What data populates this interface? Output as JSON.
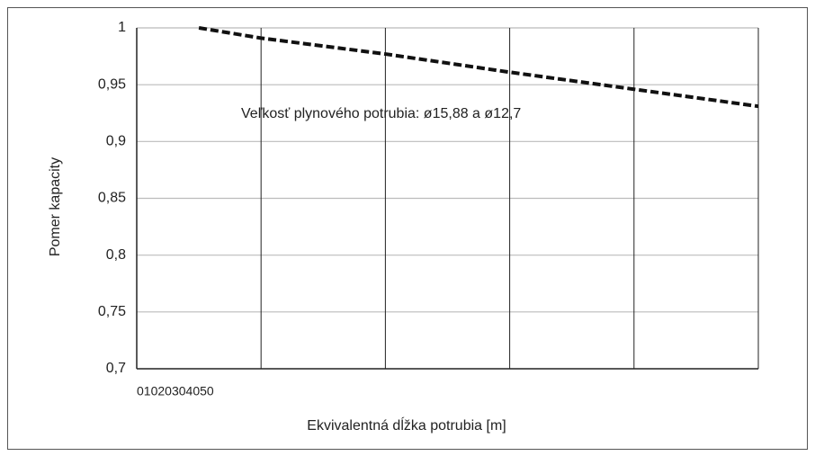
{
  "chart_data": {
    "type": "line",
    "y_label": "Pomer kapacity",
    "x_label": "Ekvivalentná dĺžka potrubia [m]",
    "annotation": "Veľkosť plynového potrubia: ø15,88 a ø12,7",
    "x": [
      5,
      10,
      20,
      30,
      40,
      50
    ],
    "series": [
      {
        "color": "#111111",
        "values": [
          1.0,
          0.991,
          0.977,
          0.961,
          0.946,
          0.931
        ]
      }
    ],
    "xlim": [
      0,
      50
    ],
    "xticks": [
      0,
      10,
      20,
      30,
      40,
      50
    ],
    "ylim": [
      0.7,
      1
    ],
    "yticks": [
      {
        "value": 0.7,
        "label": "0,7"
      },
      {
        "value": 0.75,
        "label": "0,75"
      },
      {
        "value": 0.8,
        "label": "0,8"
      },
      {
        "value": 0.85,
        "label": "0,85"
      },
      {
        "value": 0.9,
        "label": "0,9"
      },
      {
        "value": 0.95,
        "label": "0,95"
      },
      1
    ],
    "grid": true
  }
}
